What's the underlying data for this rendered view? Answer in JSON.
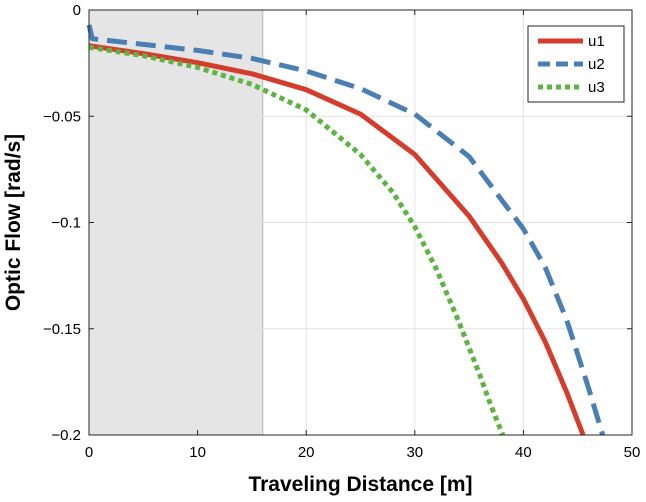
{
  "chart_data": {
    "type": "line",
    "title": "",
    "xlabel": "Traveling Distance [m]",
    "ylabel": "Optic Flow [rad/s]",
    "xlim": [
      0,
      50
    ],
    "ylim": [
      -0.2,
      0
    ],
    "x_ticks": [
      "0",
      "10",
      "20",
      "30",
      "40",
      "50"
    ],
    "y_ticks": [
      "0",
      "−0.05",
      "−0.1",
      "−0.15",
      "−0.2"
    ],
    "grid": true,
    "legend_position": "top-right",
    "shaded_region": {
      "x_start": 0,
      "x_end": 16,
      "color": "#e5e5e5"
    },
    "series": [
      {
        "name": "u1",
        "color": "#d43d2b",
        "style": "solid",
        "x": [
          0,
          5,
          10,
          15,
          20,
          25,
          30,
          35,
          38,
          40,
          42,
          44,
          45.5
        ],
        "y": [
          -0.0168,
          -0.0205,
          -0.0248,
          -0.03,
          -0.0375,
          -0.049,
          -0.068,
          -0.097,
          -0.119,
          -0.136,
          -0.156,
          -0.18,
          -0.2
        ]
      },
      {
        "name": "u2",
        "color": "#4a7fb3",
        "style": "dashed",
        "x": [
          0,
          0.3,
          5,
          10,
          15,
          20,
          25,
          30,
          35,
          40,
          42,
          44,
          46,
          47.3
        ],
        "y": [
          -0.007,
          -0.0135,
          -0.0162,
          -0.019,
          -0.0228,
          -0.0287,
          -0.037,
          -0.049,
          -0.069,
          -0.103,
          -0.121,
          -0.146,
          -0.178,
          -0.2
        ]
      },
      {
        "name": "u3",
        "color": "#5db443",
        "style": "dotted",
        "x": [
          0,
          5,
          10,
          15,
          20,
          25,
          28,
          30,
          32,
          34,
          36,
          37,
          38.1
        ],
        "y": [
          -0.0175,
          -0.0215,
          -0.027,
          -0.035,
          -0.047,
          -0.068,
          -0.086,
          -0.102,
          -0.122,
          -0.146,
          -0.172,
          -0.186,
          -0.2
        ]
      }
    ]
  }
}
